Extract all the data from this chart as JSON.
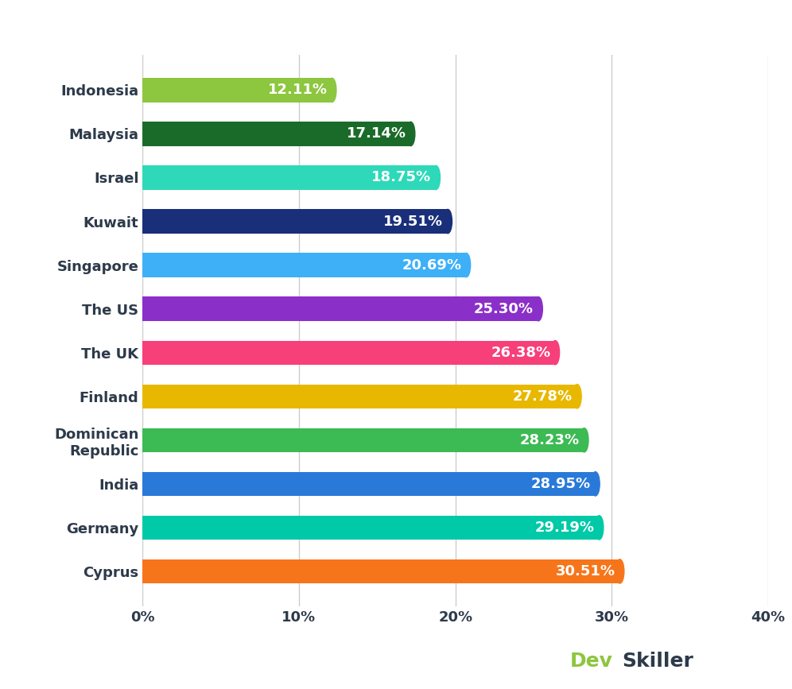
{
  "categories": [
    "Indonesia",
    "Malaysia",
    "Israel",
    "Kuwait",
    "Singapore",
    "The US",
    "The UK",
    "Finland",
    "Dominican\nRepublic",
    "India",
    "Germany",
    "Cyprus"
  ],
  "values": [
    12.11,
    17.14,
    18.75,
    19.51,
    20.69,
    25.3,
    26.38,
    27.78,
    28.23,
    28.95,
    29.19,
    30.51
  ],
  "labels": [
    "12.11%",
    "17.14%",
    "18.75%",
    "19.51%",
    "20.69%",
    "25.30%",
    "26.38%",
    "27.78%",
    "28.23%",
    "28.95%",
    "29.19%",
    "30.51%"
  ],
  "bar_colors": [
    "#8dc63f",
    "#1a6b2a",
    "#2dd9b8",
    "#1a2f7a",
    "#3db0f7",
    "#8b2fc9",
    "#f73f7a",
    "#e8b800",
    "#3cba54",
    "#2979d9",
    "#00c9a7",
    "#f7751a"
  ],
  "xlim": [
    0,
    40
  ],
  "xticks": [
    0,
    10,
    20,
    30,
    40
  ],
  "xtick_labels": [
    "0%",
    "10%",
    "20%",
    "30%",
    "40%"
  ],
  "background_color": "#ffffff",
  "bar_label_color": "#ffffff",
  "bar_label_fontsize": 13,
  "yticklabel_color": "#2d3a4a",
  "tick_color": "#2d3a4a",
  "grid_color": "#cccccc",
  "devskiller_dev_color": "#8dc63f",
  "devskiller_skiller_color": "#2d3a4a",
  "devskiller_fontsize": 18,
  "bar_height": 0.55,
  "figsize": [
    9.96,
    8.67
  ],
  "dpi": 100
}
